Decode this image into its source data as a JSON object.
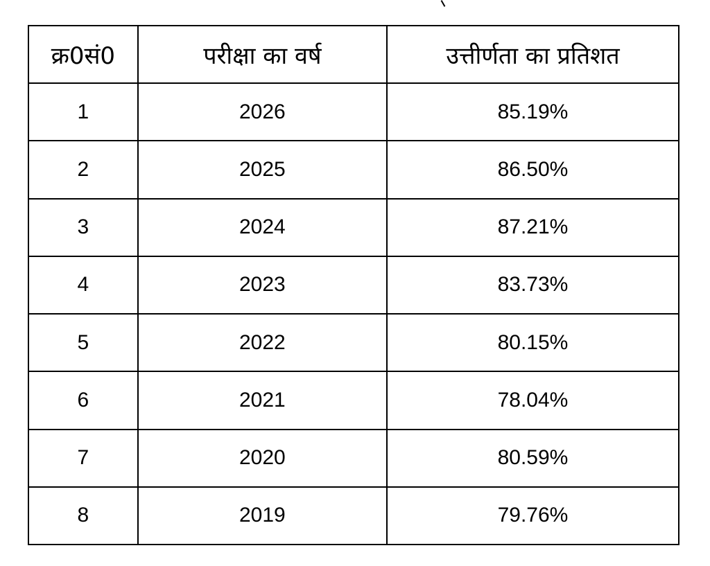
{
  "table": {
    "headers": [
      "क्र0सं0",
      "परीक्षा का वर्ष",
      "उत्तीर्णता का प्रतिशत"
    ],
    "rows": [
      [
        "1",
        "2026",
        "85.19%"
      ],
      [
        "2",
        "2025",
        "86.50%"
      ],
      [
        "3",
        "2024",
        "87.21%"
      ],
      [
        "4",
        "2023",
        "83.73%"
      ],
      [
        "5",
        "2022",
        "80.15%"
      ],
      [
        "6",
        "2021",
        "78.04%"
      ],
      [
        "7",
        "2020",
        "80.59%"
      ],
      [
        "8",
        "2019",
        "79.76%"
      ]
    ]
  }
}
